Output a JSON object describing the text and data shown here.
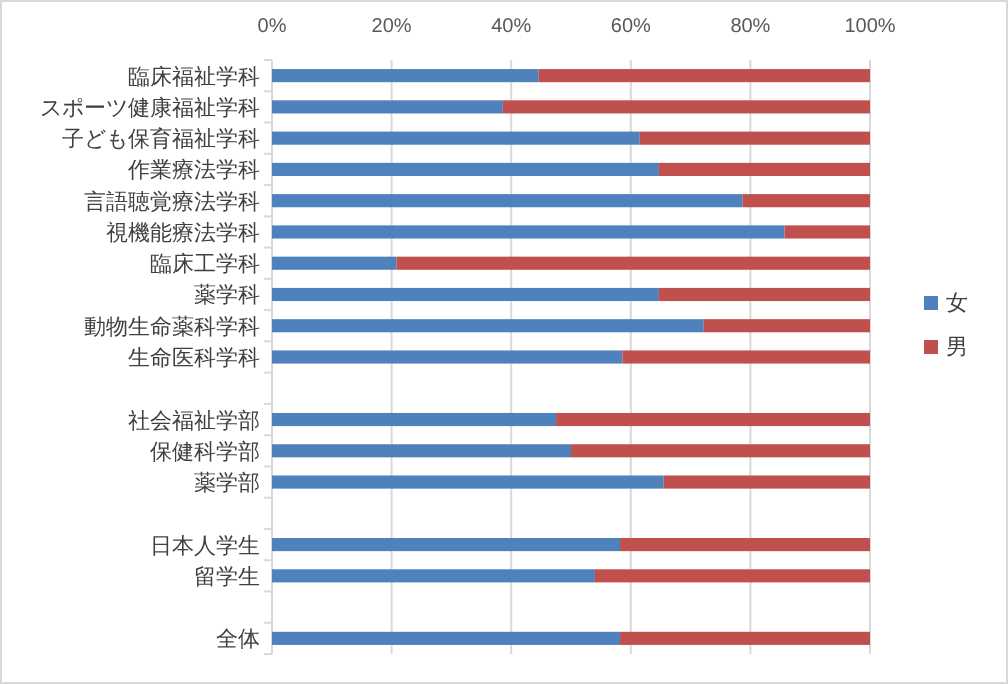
{
  "chart_data": {
    "type": "bar",
    "orientation": "horizontal",
    "stacked": true,
    "categories": [
      "臨床福祉学科",
      "スポーツ健康福祉学科",
      "子ども保育福祉学科",
      "作業療法学科",
      "言語聴覚療法学科",
      "視機能療法学科",
      "臨床工学科",
      "薬学科",
      "動物生命薬科学科",
      "生命医科学科",
      null,
      "社会福祉学部",
      "保健科学部",
      "薬学部",
      null,
      "日本人学生",
      "留学生",
      null,
      "全体"
    ],
    "series": [
      {
        "name": "女",
        "color": "#4f81bd",
        "values": [
          44.6,
          38.6,
          61.5,
          64.7,
          78.7,
          85.7,
          20.8,
          64.7,
          72.2,
          58.6,
          null,
          47.5,
          50,
          65.5,
          null,
          58.2,
          54,
          null,
          58.2
        ]
      },
      {
        "name": "男",
        "color": "#c0504d",
        "values": [
          55.4,
          61.4,
          38.5,
          35.3,
          21.3,
          14.3,
          79.2,
          35.3,
          27.8,
          41.4,
          null,
          52.5,
          50,
          34.5,
          null,
          41.8,
          46,
          null,
          41.8
        ]
      }
    ],
    "xlim": [
      0,
      100
    ],
    "xticks": [
      {
        "value": 0,
        "label": "0%"
      },
      {
        "value": 20,
        "label": "20%"
      },
      {
        "value": 40,
        "label": "40%"
      },
      {
        "value": 60,
        "label": "60%"
      },
      {
        "value": 80,
        "label": "80%"
      },
      {
        "value": 100,
        "label": "100%"
      }
    ],
    "grid": "x",
    "legend": "right"
  }
}
